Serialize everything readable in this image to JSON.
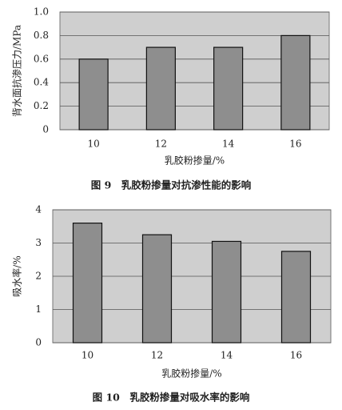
{
  "chart_data": [
    {
      "type": "bar",
      "title": "图 9　乳胶粉掺量对抗渗性能的影响",
      "x_label": "乳胶粉掺量/%",
      "y_label": "背水面抗渗压力/MPa",
      "categories": [
        "10",
        "12",
        "14",
        "16"
      ],
      "values": [
        0.6,
        0.7,
        0.7,
        0.8
      ],
      "color": "#8e8e8e",
      "ylim": [
        0,
        1
      ],
      "yticks": [
        0,
        0.2,
        0.4,
        0.6,
        0.8,
        {
          "value": 1,
          "label": "1.0"
        }
      ],
      "grid": true
    },
    {
      "type": "bar",
      "title": "图 10　乳胶粉掺量对吸水率的影响",
      "x_label": "乳胶粉掺量/%",
      "y_label": "吸水率/%",
      "categories": [
        "10",
        "12",
        "14",
        "16"
      ],
      "values": [
        3.6,
        3.25,
        3.05,
        2.75
      ],
      "color": "#8e8e8e",
      "ylim": [
        0,
        4
      ],
      "yticks": [
        0,
        1,
        2,
        3,
        4
      ],
      "grid": true
    }
  ]
}
